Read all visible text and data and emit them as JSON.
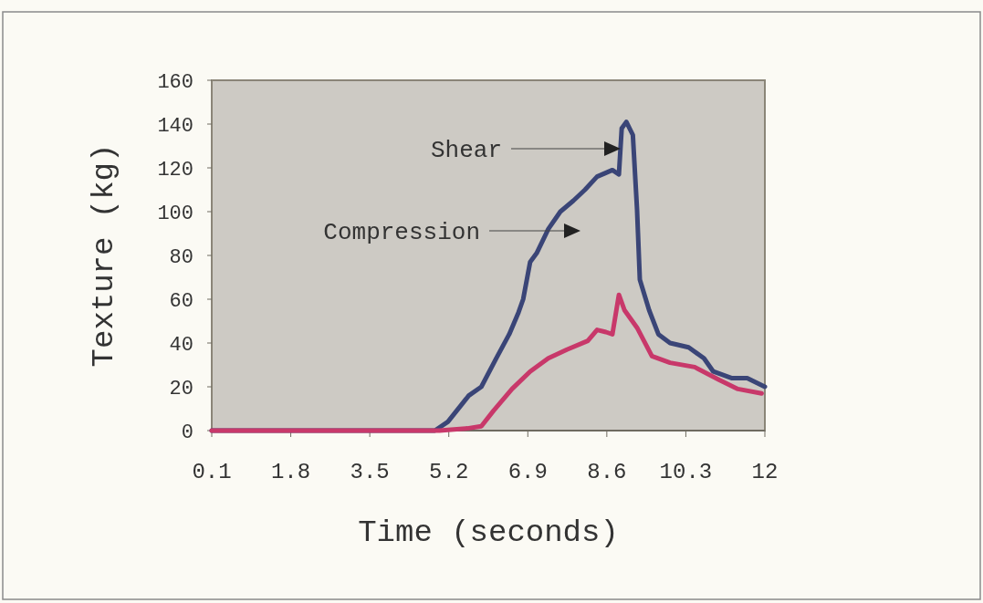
{
  "chart_data": {
    "type": "line",
    "xlabel": "Time (seconds)",
    "ylabel": "Texture (kg)",
    "xlim": [
      0.1,
      12
    ],
    "xticks": [
      0.1,
      1.8,
      3.5,
      5.2,
      6.9,
      8.6,
      10.3,
      12
    ],
    "ylim": [
      0,
      160
    ],
    "yticks": [
      0,
      20,
      40,
      60,
      80,
      100,
      120,
      140,
      160
    ],
    "grid": false,
    "marker": "none",
    "line_style": "solid",
    "annotations": [
      "Shear",
      "Compression"
    ],
    "series": [
      {
        "color": "#3a4577",
        "x": [
          0.1,
          4.9,
          5.18,
          5.63,
          5.9,
          6.22,
          6.5,
          6.7,
          6.8,
          6.95,
          7.09,
          7.34,
          7.6,
          7.88,
          8.13,
          8.39,
          8.72,
          8.86,
          8.92,
          9.02,
          9.16,
          9.25,
          9.31,
          9.51,
          9.71,
          9.96,
          10.36,
          10.69,
          10.89,
          11.28,
          11.62,
          12
        ],
        "values": [
          0,
          0,
          4,
          16,
          20,
          33,
          44,
          54,
          60,
          77,
          81,
          92,
          100,
          105,
          110,
          116,
          119,
          117,
          138,
          141,
          135,
          101,
          69,
          55,
          44,
          40,
          38,
          33,
          27,
          24,
          24,
          20
        ]
      },
      {
        "color": "#c8386a",
        "x": [
          0.1,
          5.0,
          5.6,
          5.9,
          6.16,
          6.56,
          6.95,
          7.34,
          7.74,
          8.19,
          8.39,
          8.58,
          8.72,
          8.86,
          8.98,
          9.25,
          9.57,
          9.96,
          10.49,
          11.03,
          11.42,
          11.93
        ],
        "values": [
          0,
          0,
          1,
          2,
          9,
          19,
          27,
          33,
          37,
          41,
          46,
          45,
          44,
          62,
          55,
          47,
          34,
          31,
          29,
          23,
          19,
          17
        ]
      }
    ]
  }
}
